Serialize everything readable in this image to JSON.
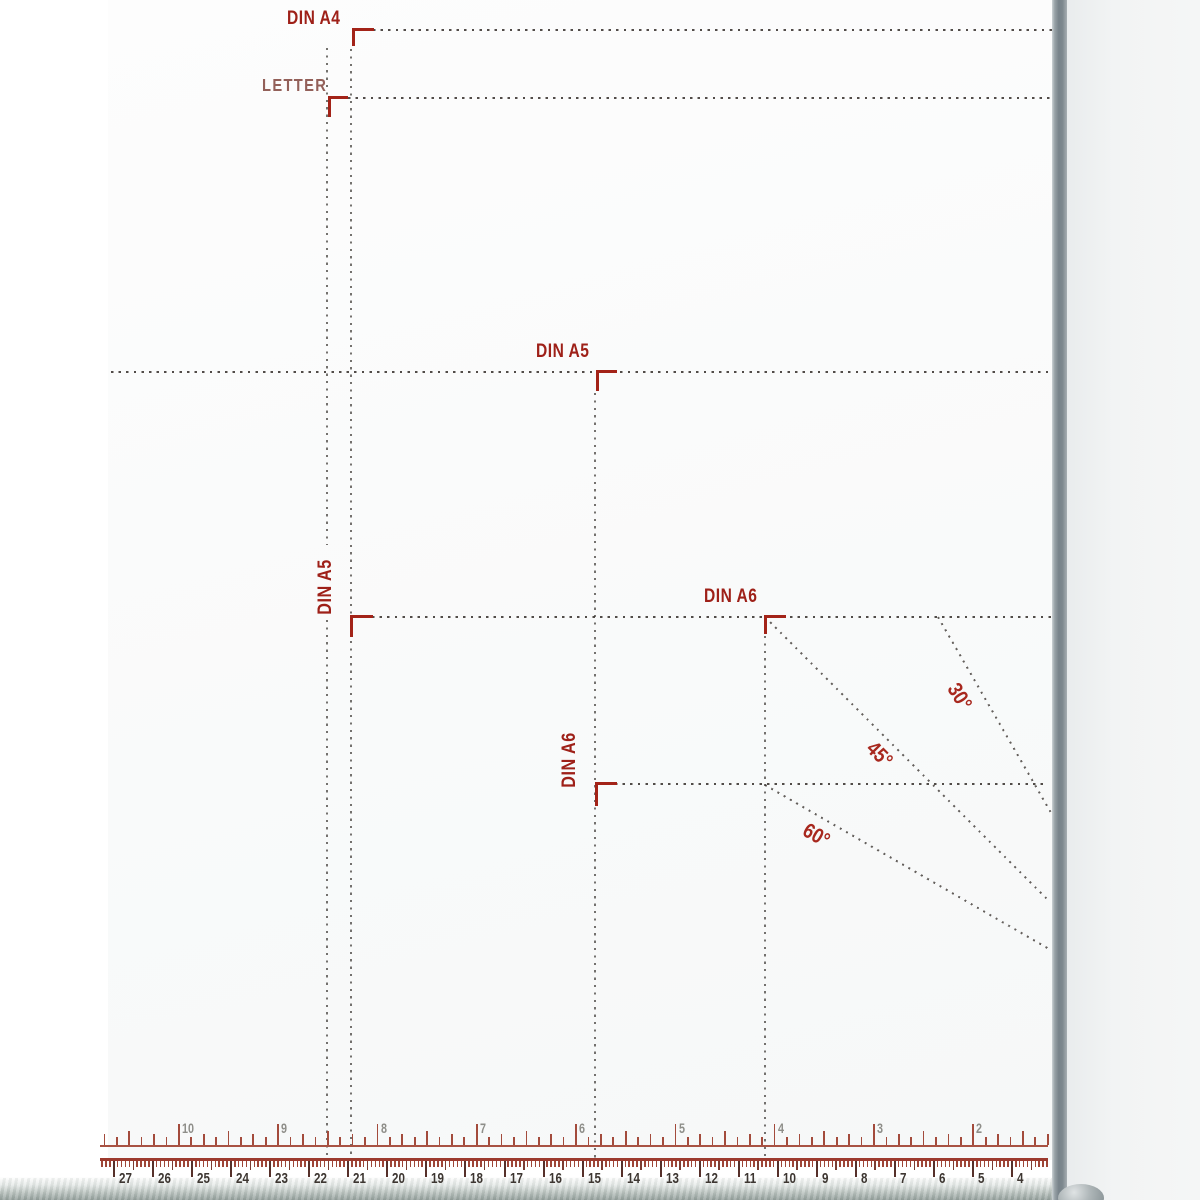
{
  "format_marks": {
    "din_a4": "DIN A4",
    "letter": "LETTER",
    "din_a5_top": "DIN A5",
    "din_a5_side": "DIN A5",
    "din_a6_top": "DIN A6",
    "din_a6_side": "DIN A6"
  },
  "angle_marks": {
    "deg30": "30°",
    "deg45": "45°",
    "deg60": "60°"
  },
  "rulers": {
    "inch": {
      "unit": "inch",
      "numbers": [
        10,
        9,
        8,
        7,
        6,
        5,
        4,
        3,
        2
      ]
    },
    "cm": {
      "unit": "cm",
      "numbers": [
        27,
        26,
        25,
        24,
        23,
        22,
        21,
        20,
        19,
        18,
        17,
        16,
        15,
        14,
        13,
        12,
        11,
        10,
        9,
        8,
        7,
        6,
        5,
        4
      ]
    }
  },
  "colors": {
    "guide_red": "#a32318",
    "label_red": "#9e2018",
    "letter_red": "#936059",
    "dotted_line": "#3a3430",
    "rail_gray": "#78838a",
    "inch_tick": "#a34b3c",
    "cm_tick": "#9e4638",
    "base_gray": "#8e9a96"
  }
}
